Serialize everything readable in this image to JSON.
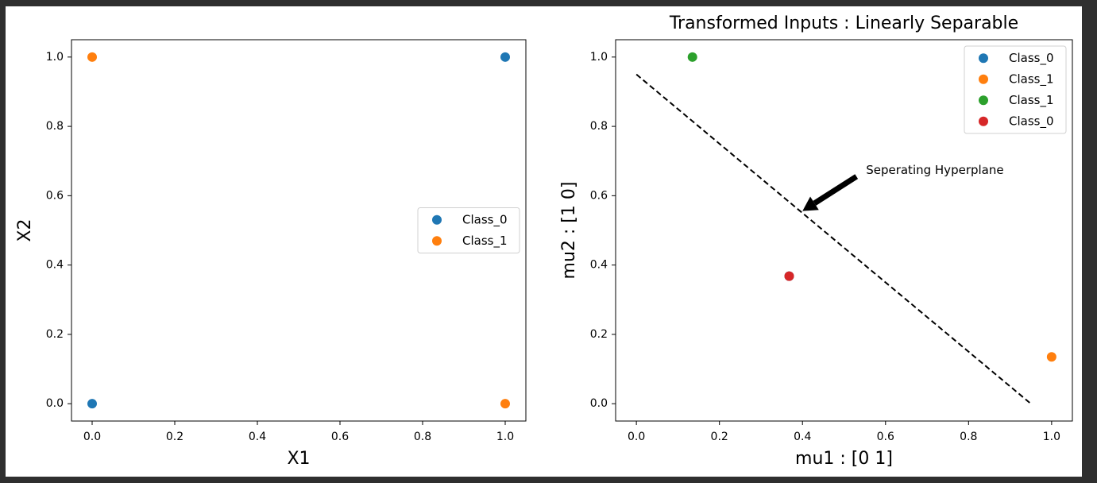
{
  "chart_data": [
    {
      "type": "scatter",
      "xlabel": "X1",
      "ylabel": "X2",
      "xlim": [
        -0.05,
        1.05
      ],
      "ylim": [
        -0.05,
        1.05
      ],
      "xticks": [
        {
          "value": 0,
          "label": "0.0"
        },
        {
          "value": 0.2,
          "label": "0.2"
        },
        {
          "value": 0.4,
          "label": "0.4"
        },
        {
          "value": 0.6,
          "label": "0.6"
        },
        {
          "value": 0.8,
          "label": "0.8"
        },
        {
          "value": 1,
          "label": "1.0"
        }
      ],
      "yticks": [
        {
          "value": 0,
          "label": "0.0"
        },
        {
          "value": 0.2,
          "label": "0.2"
        },
        {
          "value": 0.4,
          "label": "0.4"
        },
        {
          "value": 0.6,
          "label": "0.6"
        },
        {
          "value": 0.8,
          "label": "0.8"
        },
        {
          "value": 1,
          "label": "1.0"
        }
      ],
      "legend": "center right",
      "series": [
        {
          "name": "Class_0",
          "color": "#1f77b4",
          "x": [
            0,
            1
          ],
          "values": [
            0,
            1
          ]
        },
        {
          "name": "Class_1",
          "color": "#ff7f0e",
          "x": [
            0,
            1
          ],
          "values": [
            1,
            0
          ]
        }
      ]
    },
    {
      "type": "scatter",
      "title": "Transformed Inputs : Linearly Separable",
      "xlabel": "mu1 : [0 1]",
      "ylabel": "mu2 : [1 0]",
      "xlim": [
        -0.05,
        1.05
      ],
      "ylim": [
        -0.05,
        1.05
      ],
      "xticks": [
        {
          "value": 0,
          "label": "0.0"
        },
        {
          "value": 0.2,
          "label": "0.2"
        },
        {
          "value": 0.4,
          "label": "0.4"
        },
        {
          "value": 0.6,
          "label": "0.6"
        },
        {
          "value": 0.8,
          "label": "0.8"
        },
        {
          "value": 1,
          "label": "1.0"
        }
      ],
      "yticks": [
        {
          "value": 0,
          "label": "0.0"
        },
        {
          "value": 0.2,
          "label": "0.2"
        },
        {
          "value": 0.4,
          "label": "0.4"
        },
        {
          "value": 0.6,
          "label": "0.6"
        },
        {
          "value": 0.8,
          "label": "0.8"
        },
        {
          "value": 1,
          "label": "1.0"
        }
      ],
      "legend": "upper right",
      "series": [
        {
          "name": "Class_0",
          "color": "#1f77b4",
          "x": [
            0.368
          ],
          "values": [
            0.368
          ]
        },
        {
          "name": "Class_1",
          "color": "#ff7f0e",
          "x": [
            1
          ],
          "values": [
            0.135
          ]
        },
        {
          "name": "Class_1",
          "color": "#2ca02c",
          "x": [
            0.135
          ],
          "values": [
            1
          ]
        },
        {
          "name": "Class_0",
          "color": "#d62728",
          "x": [
            0.368
          ],
          "values": [
            0.368
          ]
        }
      ],
      "hyperplane": {
        "x": [
          0,
          0.95
        ],
        "values": [
          0.95,
          0
        ]
      },
      "annotation": {
        "text": "Seperating Hyperplane",
        "xy": [
          0.4,
          0.556
        ],
        "xytext": [
          0.553,
          0.673
        ]
      }
    }
  ]
}
